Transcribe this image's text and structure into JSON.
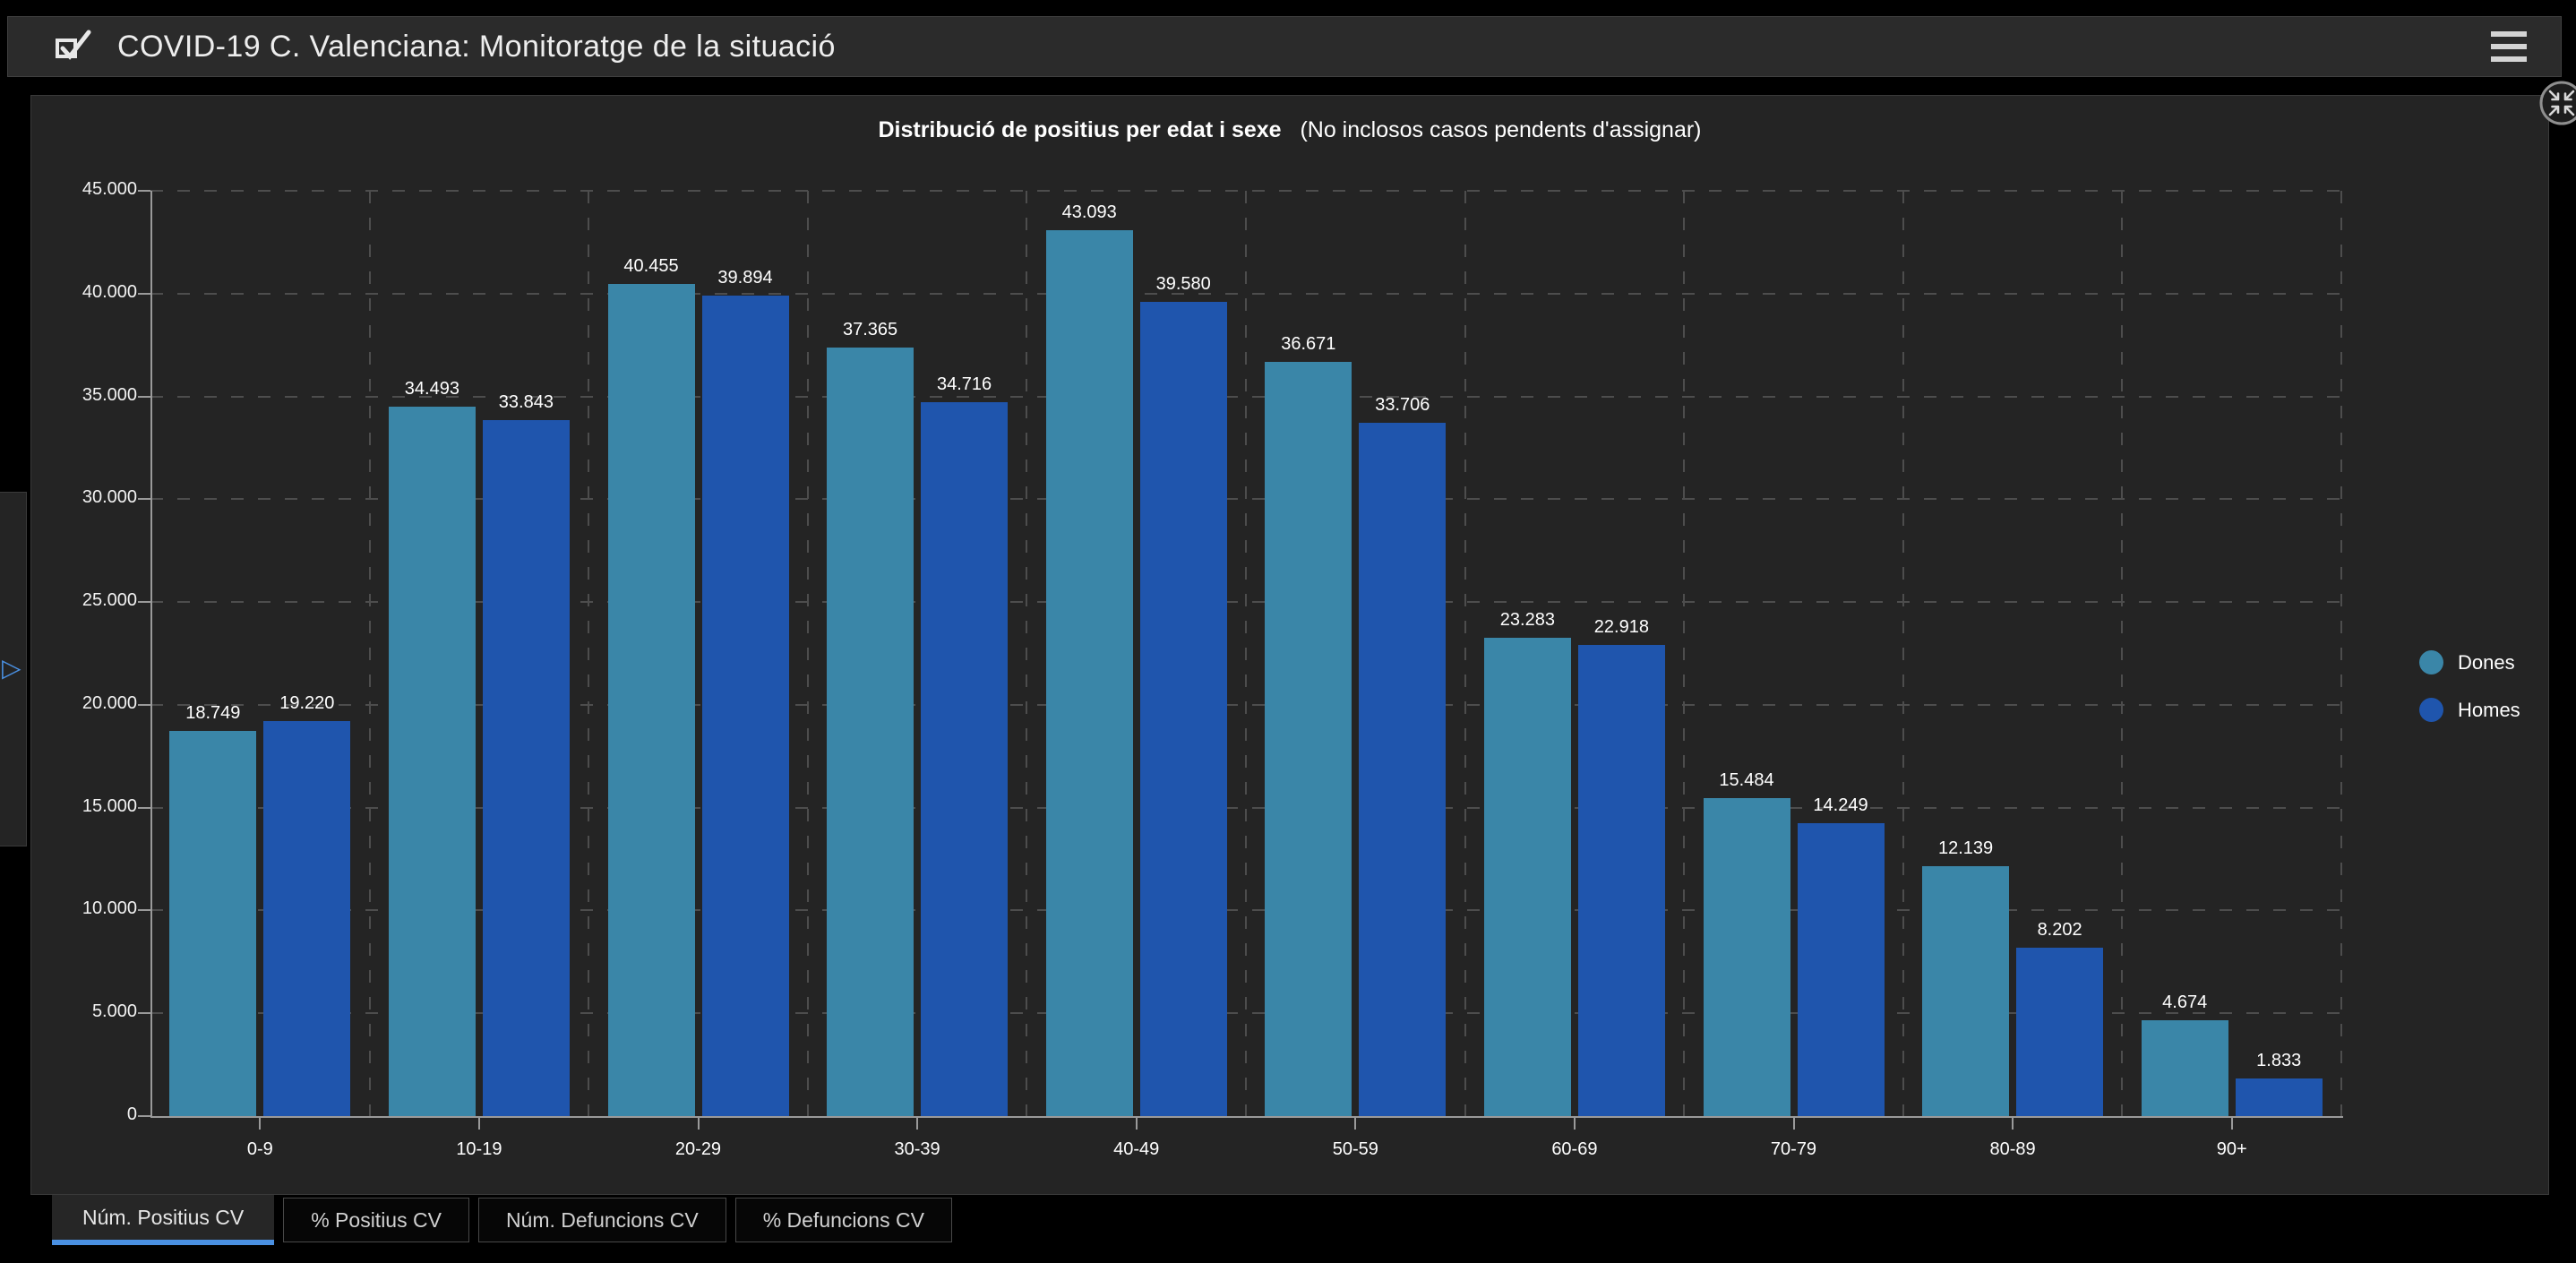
{
  "header": {
    "title": "COVID-19 C. Valenciana: Monitoratge de la situació"
  },
  "icons": {
    "logo": "app-logo-check-icon",
    "menu": "hamburger-menu-icon",
    "collapse": "collapse-arrows-icon",
    "sidebar_expand": "expand-right-arrow-icon"
  },
  "colors": {
    "dones": "#3a86a8",
    "homes": "#1f55ad",
    "accent_blue": "#4a90e2",
    "axis": "#9a9a9a",
    "grid": "#4d4d4d",
    "panel_bg": "#242424",
    "page_bg": "#000000"
  },
  "chart_data": {
    "type": "bar",
    "title_bold": "Distribució de positius per edat i sexe",
    "title_note": "(No inclosos casos pendents d'assignar)",
    "categories": [
      "0-9",
      "10-19",
      "20-29",
      "30-39",
      "40-49",
      "50-59",
      "60-69",
      "70-79",
      "80-89",
      "90+"
    ],
    "series": [
      {
        "name": "Dones",
        "color": "#3a86a8",
        "values": [
          18749,
          34493,
          40455,
          37365,
          43093,
          36671,
          23283,
          15484,
          12139,
          4674
        ],
        "labels": [
          "18.749",
          "34.493",
          "40.455",
          "37.365",
          "43.093",
          "36.671",
          "23.283",
          "15.484",
          "12.139",
          "4.674"
        ]
      },
      {
        "name": "Homes",
        "color": "#1f55ad",
        "values": [
          19220,
          33843,
          39894,
          34716,
          39580,
          33706,
          22918,
          14249,
          8202,
          1833
        ],
        "labels": [
          "19.220",
          "33.843",
          "39.894",
          "34.716",
          "39.580",
          "33.706",
          "22.918",
          "14.249",
          "8.202",
          "1.833"
        ]
      }
    ],
    "ylim": [
      0,
      45000
    ],
    "ytick_step": 5000,
    "ytick_labels": [
      "0",
      "5.000",
      "10.000",
      "15.000",
      "20.000",
      "25.000",
      "30.000",
      "35.000",
      "40.000",
      "45.000"
    ],
    "grid": "dashed",
    "legend_position": "right"
  },
  "tabs": {
    "items": [
      {
        "label": "Núm. Positius CV",
        "active": true
      },
      {
        "label": "% Positius CV",
        "active": false
      },
      {
        "label": "Núm. Defuncions CV",
        "active": false
      },
      {
        "label": "% Defuncions CV",
        "active": false
      }
    ]
  }
}
